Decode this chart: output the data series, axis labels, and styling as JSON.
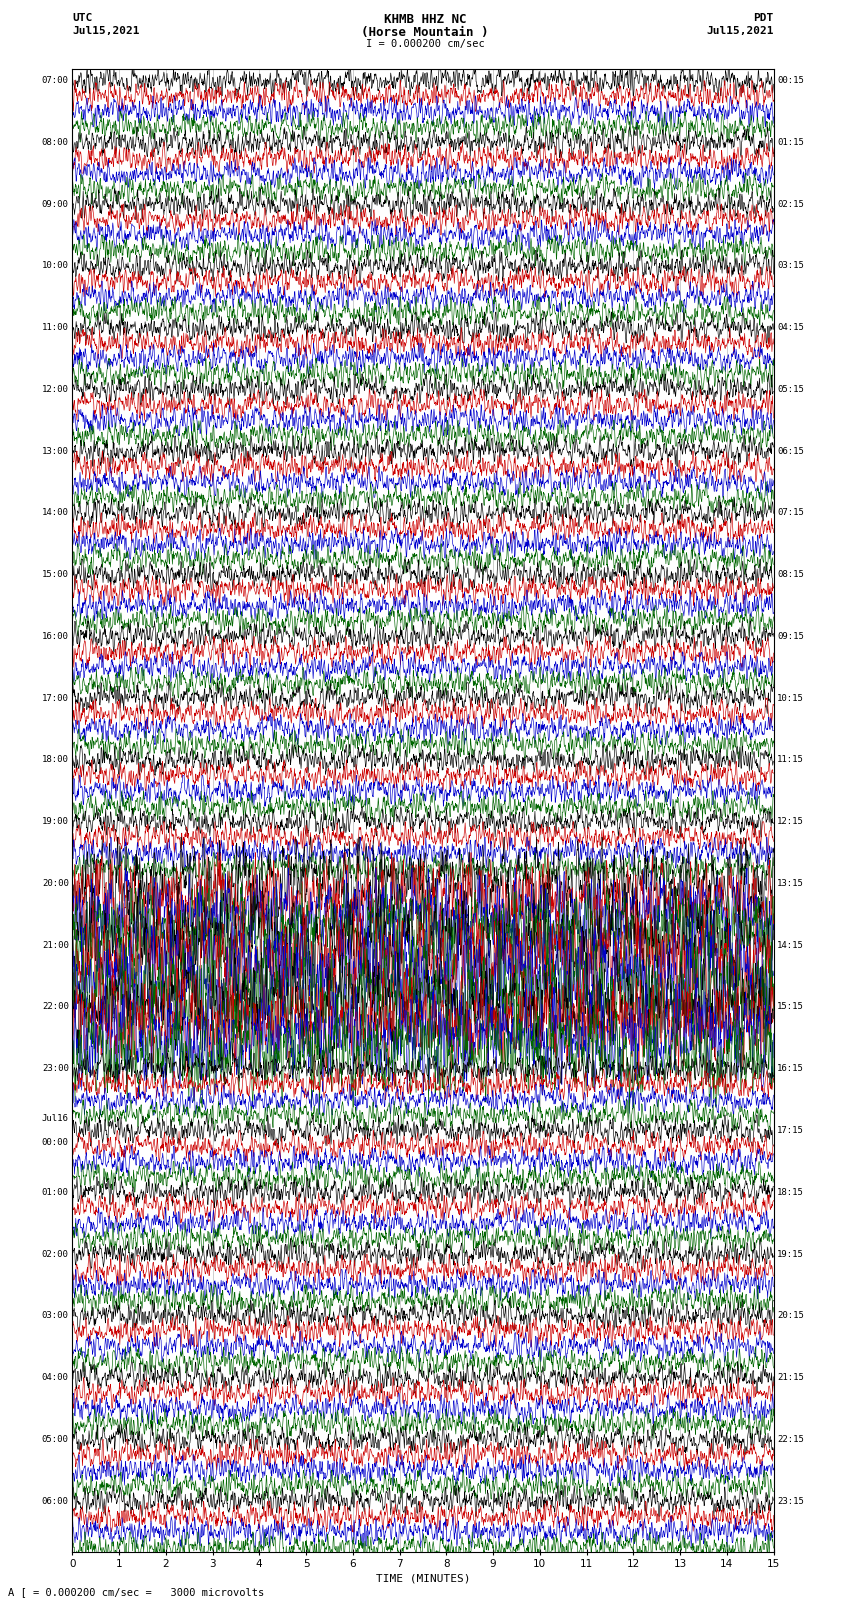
{
  "title_line1": "KHMB HHZ NC",
  "title_line2": "(Horse Mountain )",
  "scale_label": "I = 0.000200 cm/sec",
  "label_left_top": "UTC",
  "label_left_date": "Jul15,2021",
  "label_right_top": "PDT",
  "label_right_date": "Jul15,2021",
  "bottom_xlabel": "TIME (MINUTES)",
  "bottom_note": "A [ = 0.000200 cm/sec =   3000 microvolts",
  "fig_width": 8.5,
  "fig_height": 16.13,
  "dpi": 100,
  "bg_color": "#ffffff",
  "trace_colors": [
    "#000000",
    "#cc0000",
    "#0000cc",
    "#006600"
  ],
  "minutes_per_row": 15,
  "x_ticks": [
    0,
    1,
    2,
    3,
    4,
    5,
    6,
    7,
    8,
    9,
    10,
    11,
    12,
    13,
    14,
    15
  ],
  "left_labels": [
    "07:00",
    "08:00",
    "09:00",
    "10:00",
    "11:00",
    "12:00",
    "13:00",
    "14:00",
    "15:00",
    "16:00",
    "17:00",
    "18:00",
    "19:00",
    "20:00",
    "21:00",
    "22:00",
    "23:00",
    "Jul16\n00:00",
    "01:00",
    "02:00",
    "03:00",
    "04:00",
    "05:00",
    "06:00"
  ],
  "right_labels": [
    "00:15",
    "01:15",
    "02:15",
    "03:15",
    "04:15",
    "05:15",
    "06:15",
    "07:15",
    "08:15",
    "09:15",
    "10:15",
    "11:15",
    "12:15",
    "13:15",
    "14:15",
    "15:15",
    "16:15",
    "17:15",
    "18:15",
    "19:15",
    "20:15",
    "21:15",
    "22:15",
    "23:15"
  ],
  "num_hour_groups": 24,
  "traces_per_group": 4,
  "large_event_groups": [
    13,
    14,
    15
  ],
  "large_event_amps": [
    3.0,
    4.0,
    3.5
  ]
}
